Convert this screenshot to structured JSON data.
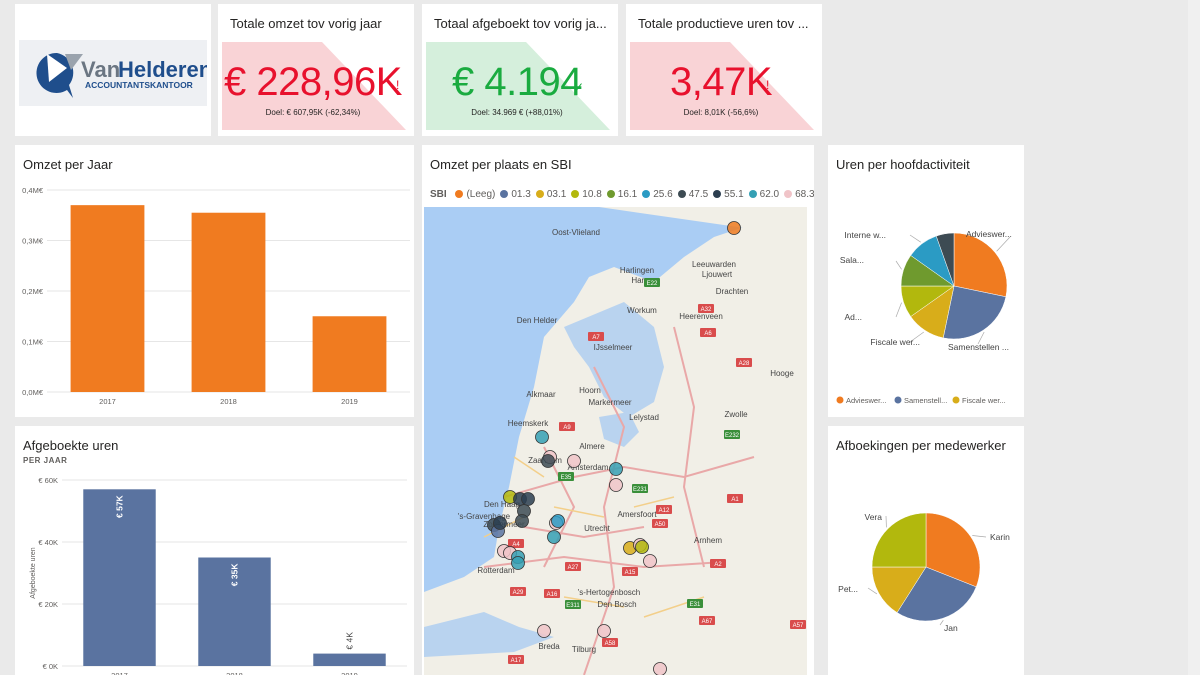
{
  "logo": {
    "name_a": "Van",
    "name_b": "Helderen",
    "tagline": "ACCOUNTANTSKANTOOR"
  },
  "kpis": [
    {
      "title": "Totale omzet tov vorig jaar",
      "value": "€ 228,96K",
      "mark": "!",
      "target": "Doel: € 607,95K (-62,34%)",
      "status_color": "#e8112d",
      "bg_color": "#f9d3d6"
    },
    {
      "title": "Totaal afgeboekt tov vorig ja...",
      "value": "€ 4.194",
      "mark": "✓",
      "target": "Doel: 34.969 € (+88,01%)",
      "status_color": "#1aab40",
      "bg_color": "#d5efdc"
    },
    {
      "title": "Totale productieve uren tov ...",
      "value": "3,47K",
      "mark": "!",
      "target": "Doel: 8,01K (-56,6%)",
      "status_color": "#e8112d",
      "bg_color": "#f9d3d6"
    }
  ],
  "omzet_chart": {
    "title": "Omzet per Jaar",
    "chart_data": {
      "type": "bar",
      "categories": [
        "2017",
        "2018",
        "2019"
      ],
      "values": [
        0.37,
        0.355,
        0.15
      ],
      "y_ticks": [
        0,
        0.1,
        0.2,
        0.3,
        0.4
      ],
      "y_tick_labels": [
        "0,0M€",
        "0,1M€",
        "0,2M€",
        "0,3M€",
        "0,4M€"
      ],
      "ylim": [
        0,
        0.4
      ],
      "color": "#f07b20",
      "grid": true
    }
  },
  "uren_chart": {
    "title": "Afgeboekte uren",
    "subtitle": "PER JAAR",
    "chart_data": {
      "type": "bar",
      "categories": [
        "2017",
        "2018",
        "2019"
      ],
      "values": [
        57000,
        35000,
        4000
      ],
      "data_labels": [
        "€ 57K",
        "€ 35K",
        "€ 4K"
      ],
      "y_ticks": [
        0,
        20000,
        40000,
        60000
      ],
      "y_tick_labels": [
        "€ 0K",
        "€ 20K",
        "€ 40K",
        "€ 60K"
      ],
      "ylabel": "Afgeboekte uren",
      "ylim": [
        0,
        60000
      ],
      "color": "#5a73a0",
      "grid": true
    }
  },
  "map": {
    "title": "Omzet per plaats en SBI",
    "legend_title": "SBI",
    "legend": [
      {
        "label": "(Leeg)",
        "color": "#f07b20"
      },
      {
        "label": "01.3",
        "color": "#5a73a0"
      },
      {
        "label": "03.1",
        "color": "#d8ad1a"
      },
      {
        "label": "10.8",
        "color": "#b2b80d"
      },
      {
        "label": "16.1",
        "color": "#6f9a2e"
      },
      {
        "label": "25.6",
        "color": "#2b9bc4"
      },
      {
        "label": "47.5",
        "color": "#3d4b53"
      },
      {
        "label": "55.1",
        "color": "#2c3e50"
      },
      {
        "label": "62.0",
        "color": "#35a0b4"
      },
      {
        "label": "68.3",
        "color": "#f0c4c8"
      }
    ],
    "place_labels": [
      "Oost-Vlieland",
      "Harlingen",
      "Harns",
      "Leeuwarden",
      "Ljouwert",
      "Drachten",
      "Den Helder",
      "Workum",
      "Heerenveen",
      "IJsselmeer",
      "Alkmaar",
      "Hoorn",
      "Markermeer",
      "Lelystad",
      "Zwolle",
      "Heemskerk",
      "Zaandam",
      "Almere",
      "Amsterdam",
      "Den Haag",
      "'s-Gravenhage",
      "Zoetermeer",
      "Utrecht",
      "Amersfoort",
      "Arnhem",
      "Rotterdam",
      "'s-Hertogenbosch",
      "Den Bosch",
      "Breda",
      "Tilburg",
      "Hooge"
    ],
    "road_labels": [
      "E22",
      "A7",
      "A6",
      "A9",
      "A1",
      "E35",
      "E231",
      "A12",
      "A15",
      "A2",
      "A4",
      "A16",
      "A27",
      "A58",
      "A29",
      "A50",
      "E232",
      "E31",
      "E311",
      "A28",
      "A32",
      "A17",
      "A67",
      "A57"
    ]
  },
  "hoofdactiviteit": {
    "title": "Uren per hoofdactiviteit",
    "chart_data": {
      "type": "pie",
      "slices": [
        {
          "label": "Advieswer...",
          "value": 26,
          "color": "#f07b20"
        },
        {
          "label": "Samenstellen ...",
          "value": 23,
          "color": "#5a73a0"
        },
        {
          "label": "Fiscale wer...",
          "value": 11,
          "color": "#d8ad1a"
        },
        {
          "label": "Ad...",
          "value": 9,
          "color": "#b2b80d"
        },
        {
          "label": "Sala...",
          "value": 9,
          "color": "#6f9a2e"
        },
        {
          "label": "Interne w...",
          "value": 9,
          "color": "#2b9bc4"
        },
        {
          "label": "",
          "value": 5,
          "color": "#3d4b53"
        }
      ],
      "legend": [
        "Advieswer...",
        "Samenstell...",
        "Fiscale wer..."
      ]
    }
  },
  "medewerker": {
    "title": "Afboekingen per medewerker",
    "chart_data": {
      "type": "pie",
      "slices": [
        {
          "label": "Karin",
          "value": 31,
          "color": "#f07b20"
        },
        {
          "label": "Jan",
          "value": 28,
          "color": "#5a73a0"
        },
        {
          "label": "Pet...",
          "value": 16,
          "color": "#d8ad1a"
        },
        {
          "label": "Vera",
          "value": 25,
          "color": "#b2b80d"
        }
      ]
    }
  }
}
